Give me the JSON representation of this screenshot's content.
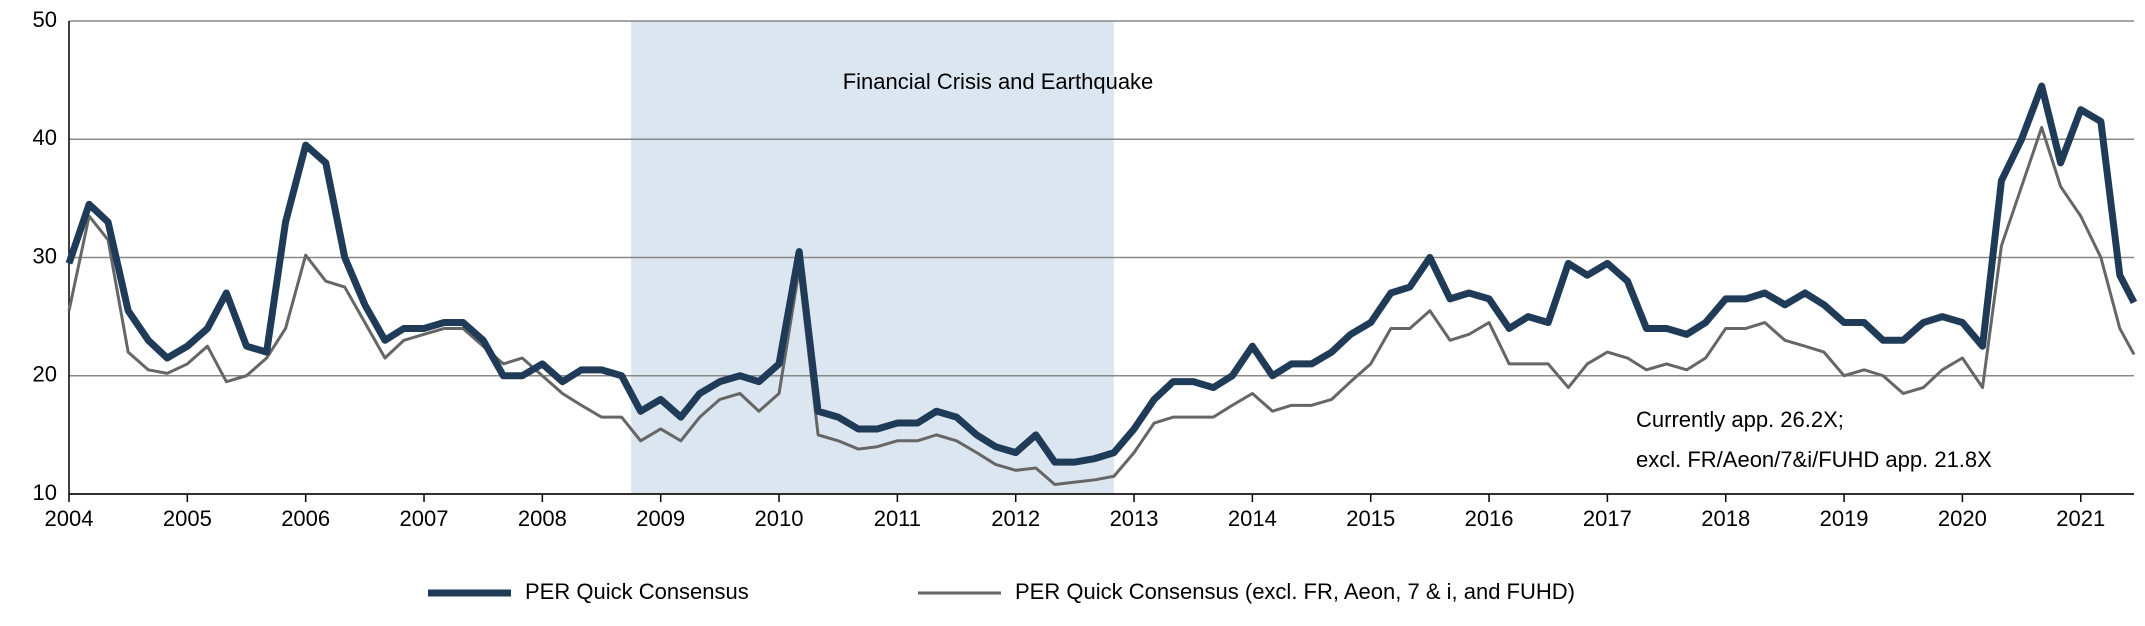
{
  "chart_data": {
    "type": "line",
    "highlight": {
      "label": "Financial Crisis and Earthquake",
      "range": [
        2008.75,
        2012.83
      ],
      "color": "#dce6f1"
    },
    "annotations": [
      "Currently app. 26.2X;",
      "excl. FR/Aeon/7&i/FUHD app. 21.8X"
    ],
    "x": [
      2004,
      2004.17,
      2004.33,
      2004.5,
      2004.67,
      2004.83,
      2005,
      2005.17,
      2005.33,
      2005.5,
      2005.67,
      2005.83,
      2006,
      2006.17,
      2006.33,
      2006.5,
      2006.67,
      2006.83,
      2007,
      2007.17,
      2007.33,
      2007.5,
      2007.67,
      2007.83,
      2008,
      2008.17,
      2008.33,
      2008.5,
      2008.67,
      2008.83,
      2009,
      2009.17,
      2009.33,
      2009.5,
      2009.67,
      2009.83,
      2010,
      2010.17,
      2010.33,
      2010.5,
      2010.67,
      2010.83,
      2011,
      2011.17,
      2011.33,
      2011.5,
      2011.67,
      2011.83,
      2012,
      2012.17,
      2012.33,
      2012.5,
      2012.67,
      2012.83,
      2013,
      2013.17,
      2013.33,
      2013.5,
      2013.67,
      2013.83,
      2014,
      2014.17,
      2014.33,
      2014.5,
      2014.67,
      2014.83,
      2015,
      2015.17,
      2015.33,
      2015.5,
      2015.67,
      2015.83,
      2016,
      2016.17,
      2016.33,
      2016.5,
      2016.67,
      2016.83,
      2017,
      2017.17,
      2017.33,
      2017.5,
      2017.67,
      2017.83,
      2018,
      2018.17,
      2018.33,
      2018.5,
      2018.67,
      2018.83,
      2019,
      2019.17,
      2019.33,
      2019.5,
      2019.67,
      2019.83,
      2020,
      2020.17,
      2020.33,
      2020.5,
      2020.67,
      2020.83,
      2021,
      2021.17,
      2021.33,
      2021.45
    ],
    "series": [
      {
        "name": "PER Quick Consensus",
        "color": "#1f3b57",
        "width": 7,
        "values": [
          29.5,
          34.5,
          33,
          25.5,
          23,
          21.5,
          22.5,
          24,
          27,
          22.5,
          22,
          33,
          39.5,
          38,
          30,
          26,
          23,
          24,
          24,
          24.5,
          24.5,
          23,
          20,
          20,
          21,
          19.5,
          20.5,
          20.5,
          20,
          17,
          18,
          16.5,
          18.5,
          19.5,
          20,
          19.5,
          21,
          30.5,
          17,
          16.5,
          15.5,
          15.5,
          16,
          16,
          17,
          16.5,
          15,
          14,
          13.5,
          15,
          12.7,
          12.7,
          13,
          13.5,
          15.5,
          18,
          19.5,
          19.5,
          19,
          20,
          22.5,
          20,
          21,
          21,
          22,
          23.5,
          24.5,
          27,
          27.5,
          30,
          26.5,
          27,
          26.5,
          24,
          25,
          24.5,
          29.5,
          28.5,
          29.5,
          28,
          24,
          24,
          23.5,
          24.5,
          26.5,
          26.5,
          27,
          26,
          27,
          26,
          24.5,
          24.5,
          23,
          23,
          24.5,
          25,
          24.5,
          22.5,
          36.5,
          40,
          44.5,
          38,
          42.5,
          41.5,
          28.5,
          26.2
        ]
      },
      {
        "name": "PER Quick Consensus (excl. FR, Aeon, 7 & i, and FUHD)",
        "color": "#666666",
        "width": 3,
        "values": [
          25.5,
          33.5,
          31.5,
          22,
          20.5,
          20.2,
          21,
          22.5,
          19.5,
          20,
          21.5,
          24,
          30.2,
          28,
          27.5,
          24.5,
          21.5,
          23,
          23.5,
          24,
          24,
          22.5,
          21,
          21.5,
          20,
          18.5,
          17.5,
          16.5,
          16.5,
          14.5,
          15.5,
          14.5,
          16.5,
          18,
          18.5,
          17,
          18.5,
          29,
          15,
          14.5,
          13.8,
          14,
          14.5,
          14.5,
          15,
          14.5,
          13.5,
          12.5,
          12,
          12.2,
          10.8,
          11,
          11.2,
          11.5,
          13.5,
          16,
          16.5,
          16.5,
          16.5,
          17.5,
          18.5,
          17,
          17.5,
          17.5,
          18,
          19.5,
          21,
          24,
          24,
          25.5,
          23,
          23.5,
          24.5,
          21,
          21,
          21,
          19,
          21,
          22,
          21.5,
          20.5,
          21,
          20.5,
          21.5,
          24,
          24,
          24.5,
          23,
          22.5,
          22,
          20,
          20.5,
          20,
          18.5,
          19,
          20.5,
          21.5,
          19,
          31,
          36,
          41,
          36,
          33.5,
          30,
          24,
          21.8
        ]
      }
    ],
    "xlim": [
      2004,
      2021.45
    ],
    "xticks": [
      2004,
      2005,
      2006,
      2007,
      2008,
      2009,
      2010,
      2011,
      2012,
      2013,
      2014,
      2015,
      2016,
      2017,
      2018,
      2019,
      2020,
      2021
    ],
    "ylim": [
      10,
      50
    ],
    "yticks": [
      10,
      20,
      30,
      40,
      50
    ],
    "grid": true,
    "legend": "bottom"
  }
}
